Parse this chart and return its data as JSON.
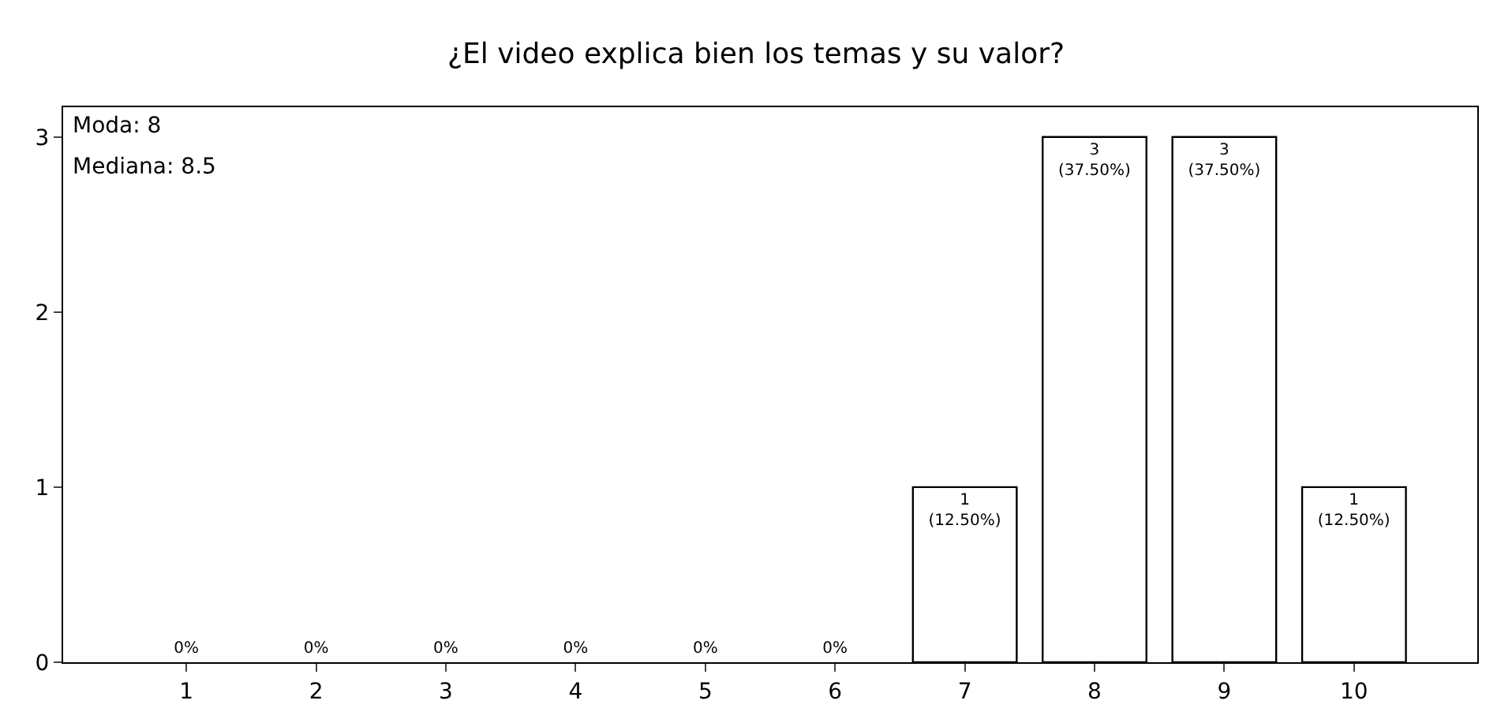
{
  "chart_data": {
    "type": "bar",
    "title": "¿El video explica bien los temas y su valor?",
    "categories": [
      "1",
      "2",
      "3",
      "4",
      "5",
      "6",
      "7",
      "8",
      "9",
      "10"
    ],
    "values": [
      0,
      0,
      0,
      0,
      0,
      0,
      1,
      3,
      3,
      1
    ],
    "value_labels": [
      "0%",
      "0%",
      "0%",
      "0%",
      "0%",
      "0%",
      "1\n(12.50%)",
      "3\n(37.50%)",
      "3\n(37.50%)",
      "1\n(12.50%)"
    ],
    "color": "#ffffff",
    "ylim": [
      0,
      3.17
    ],
    "yticks": [
      0,
      1,
      2,
      3
    ],
    "grid": false,
    "legend": false,
    "annotations": [
      "Moda: 8",
      "Mediana: 8.5"
    ]
  }
}
